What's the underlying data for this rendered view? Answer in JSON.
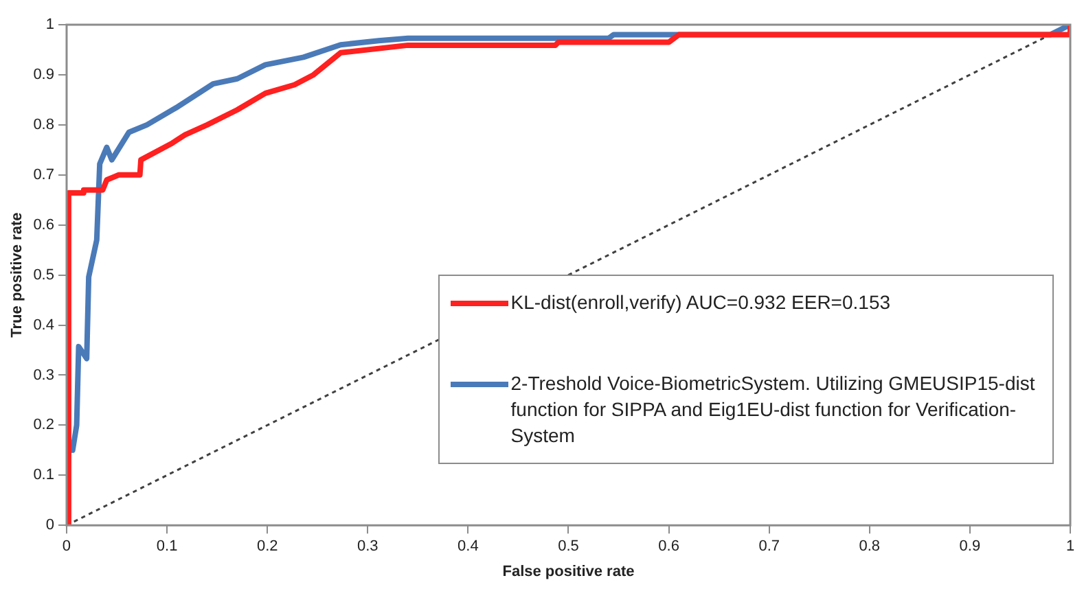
{
  "chart_data": {
    "type": "line",
    "xlabel": "False positive rate",
    "ylabel": "True positive rate",
    "xlim": [
      0,
      1
    ],
    "ylim": [
      0,
      1
    ],
    "xticks": [
      0,
      0.1,
      0.2,
      0.3,
      0.4,
      0.5,
      0.6,
      0.7,
      0.8,
      0.9,
      1
    ],
    "yticks": [
      0,
      0.1,
      0.2,
      0.3,
      0.4,
      0.5,
      0.6,
      0.7,
      0.8,
      0.9,
      1
    ],
    "grid": false,
    "legend": "bottom right",
    "marker": "none",
    "series": [
      {
        "name": "KL-dist(enroll,verify) AUC=0.932 EER=0.153",
        "color": "#ff2020",
        "line_style": "solid",
        "x": [
          0,
          0.002,
          0.002,
          0.017,
          0.017,
          0.036,
          0.04,
          0.052,
          0.073,
          0.074,
          0.104,
          0.118,
          0.14,
          0.17,
          0.198,
          0.227,
          0.246,
          0.273,
          0.34,
          0.487,
          0.49,
          0.6,
          0.61,
          0.98,
          1,
          1
        ],
        "values": [
          0,
          0,
          0.664,
          0.664,
          0.67,
          0.67,
          0.69,
          0.7,
          0.7,
          0.73,
          0.762,
          0.78,
          0.8,
          0.83,
          0.863,
          0.88,
          0.9,
          0.944,
          0.959,
          0.959,
          0.965,
          0.965,
          0.98,
          0.98,
          0.98,
          1
        ]
      },
      {
        "name": "2-Treshold Voice-BiometricSystem. Utilizing GMEUSIP15-dist function for SIPPA and Eig1EU-dist function for Verification-System",
        "color": "#4a7ab8",
        "line_style": "solid",
        "x": [
          0,
          0.002,
          0.006,
          0.01,
          0.012,
          0.02,
          0.022,
          0.03,
          0.033,
          0.04,
          0.045,
          0.062,
          0.08,
          0.109,
          0.146,
          0.17,
          0.198,
          0.236,
          0.273,
          0.311,
          0.34,
          0.54,
          0.545,
          0.98,
          1
        ],
        "values": [
          0,
          0.15,
          0.15,
          0.2,
          0.357,
          0.333,
          0.496,
          0.57,
          0.722,
          0.755,
          0.73,
          0.785,
          0.8,
          0.834,
          0.882,
          0.892,
          0.92,
          0.935,
          0.96,
          0.968,
          0.973,
          0.973,
          0.98,
          0.98,
          1
        ]
      },
      {
        "color": "#404040",
        "line_style": "dotted",
        "x": [
          0,
          1
        ],
        "values": [
          0,
          1
        ]
      }
    ]
  }
}
